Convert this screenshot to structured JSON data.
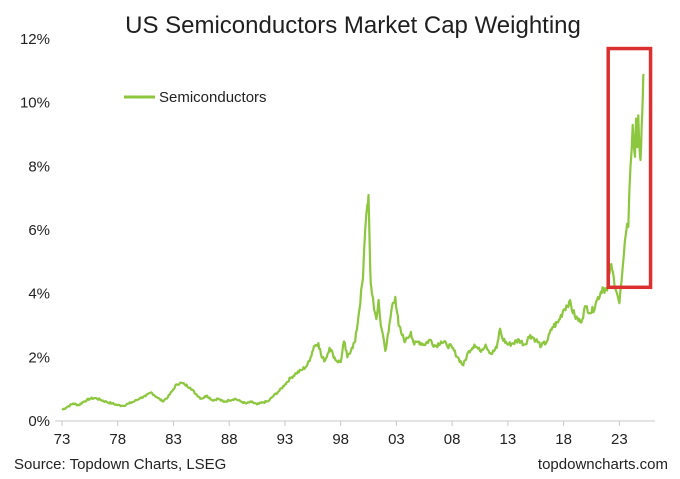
{
  "chart_data": {
    "type": "line",
    "title": "US Semiconductors Market Cap Weighting",
    "xlabel": "",
    "ylabel": "",
    "xlim": [
      1973,
      2025.3
    ],
    "ylim": [
      0,
      12
    ],
    "x_ticks": [
      {
        "value": 1973,
        "label": "73"
      },
      {
        "value": 1978,
        "label": "78"
      },
      {
        "value": 1983,
        "label": "83"
      },
      {
        "value": 1988,
        "label": "88"
      },
      {
        "value": 1993,
        "label": "93"
      },
      {
        "value": 1998,
        "label": "98"
      },
      {
        "value": 2003,
        "label": "03"
      },
      {
        "value": 2008,
        "label": "08"
      },
      {
        "value": 2013,
        "label": "13"
      },
      {
        "value": 2018,
        "label": "18"
      },
      {
        "value": 2023,
        "label": "23"
      }
    ],
    "y_ticks": [
      {
        "value": 0,
        "label": "0%"
      },
      {
        "value": 2,
        "label": "2%"
      },
      {
        "value": 4,
        "label": "4%"
      },
      {
        "value": 6,
        "label": "6%"
      },
      {
        "value": 8,
        "label": "8%"
      },
      {
        "value": 10,
        "label": "10%"
      },
      {
        "value": 12,
        "label": "12%"
      }
    ],
    "grid": false,
    "legend_position": "top-left",
    "series": [
      {
        "name": "Semiconductors",
        "color": "#8dc63f",
        "x": [
          1973.0,
          1973.5,
          1974.0,
          1974.5,
          1975.0,
          1975.5,
          1976.0,
          1976.5,
          1977.0,
          1977.5,
          1978.0,
          1978.5,
          1979.0,
          1979.5,
          1980.0,
          1980.5,
          1981.0,
          1981.5,
          1982.0,
          1982.5,
          1983.0,
          1983.3,
          1983.6,
          1984.0,
          1984.5,
          1985.0,
          1985.5,
          1986.0,
          1986.5,
          1987.0,
          1987.5,
          1988.0,
          1988.5,
          1989.0,
          1989.5,
          1990.0,
          1990.5,
          1991.0,
          1991.5,
          1992.0,
          1992.5,
          1993.0,
          1993.5,
          1994.0,
          1994.5,
          1995.0,
          1995.3,
          1995.6,
          1996.0,
          1996.3,
          1996.6,
          1997.0,
          1997.3,
          1997.6,
          1998.0,
          1998.3,
          1998.6,
          1999.0,
          1999.3,
          1999.6,
          2000.0,
          2000.2,
          2000.4,
          2000.5,
          2000.6,
          2000.7,
          2000.8,
          2001.0,
          2001.2,
          2001.4,
          2001.6,
          2001.8,
          2002.0,
          2002.3,
          2002.6,
          2002.9,
          2003.2,
          2003.5,
          2003.8,
          2004.0,
          2004.3,
          2004.6,
          2005.0,
          2005.5,
          2006.0,
          2006.5,
          2007.0,
          2007.5,
          2008.0,
          2008.5,
          2009.0,
          2009.5,
          2010.0,
          2010.5,
          2011.0,
          2011.5,
          2012.0,
          2012.3,
          2012.5,
          2013.0,
          2013.5,
          2014.0,
          2014.5,
          2015.0,
          2015.5,
          2016.0,
          2016.5,
          2017.0,
          2017.5,
          2018.0,
          2018.5,
          2019.0,
          2019.5,
          2020.0,
          2020.5,
          2021.0,
          2021.5,
          2021.9,
          2022.2,
          2022.5,
          2022.8,
          2023.0,
          2023.2,
          2023.4,
          2023.6,
          2023.8,
          2024.0,
          2024.2,
          2024.4,
          2024.5,
          2024.6,
          2024.7,
          2024.8,
          2024.9,
          2025.0,
          2025.1,
          2025.2
        ],
        "values": [
          0.35,
          0.45,
          0.55,
          0.5,
          0.62,
          0.7,
          0.72,
          0.66,
          0.6,
          0.55,
          0.5,
          0.48,
          0.55,
          0.62,
          0.72,
          0.78,
          0.9,
          0.75,
          0.62,
          0.75,
          1.0,
          1.15,
          1.2,
          1.15,
          1.05,
          0.85,
          0.7,
          0.8,
          0.65,
          0.7,
          0.6,
          0.65,
          0.7,
          0.62,
          0.55,
          0.6,
          0.52,
          0.58,
          0.62,
          0.8,
          0.95,
          1.15,
          1.35,
          1.5,
          1.6,
          1.75,
          2.0,
          2.35,
          2.45,
          2.0,
          1.9,
          2.3,
          2.1,
          1.9,
          1.85,
          2.5,
          2.0,
          2.3,
          2.5,
          3.3,
          4.5,
          6.0,
          6.8,
          7.1,
          5.5,
          4.3,
          4.0,
          3.5,
          3.2,
          3.8,
          3.0,
          2.7,
          2.2,
          2.8,
          3.6,
          3.9,
          3.0,
          2.7,
          2.5,
          2.6,
          2.8,
          2.4,
          2.5,
          2.4,
          2.55,
          2.35,
          2.5,
          2.4,
          2.3,
          2.0,
          1.75,
          2.2,
          2.4,
          2.2,
          2.4,
          2.1,
          2.3,
          2.9,
          2.6,
          2.4,
          2.45,
          2.55,
          2.4,
          2.7,
          2.55,
          2.35,
          2.5,
          2.95,
          3.1,
          3.5,
          3.75,
          3.3,
          3.1,
          3.6,
          3.4,
          3.8,
          4.2,
          4.1,
          4.9,
          4.5,
          4.0,
          3.7,
          4.4,
          5.2,
          5.9,
          6.1,
          8.0,
          9.3,
          8.3,
          9.5,
          8.6,
          9.6,
          8.6,
          8.2,
          9.3,
          10.2,
          10.9
        ]
      }
    ],
    "annotations": [
      {
        "type": "highlight-box",
        "color": "#dc2f2f",
        "x_range": [
          2022.0,
          2025.8
        ],
        "y_range": [
          4.2,
          11.7
        ]
      }
    ]
  },
  "footer": {
    "source": "Source: Topdown Charts, LSEG",
    "brand": "topdowncharts.com"
  }
}
